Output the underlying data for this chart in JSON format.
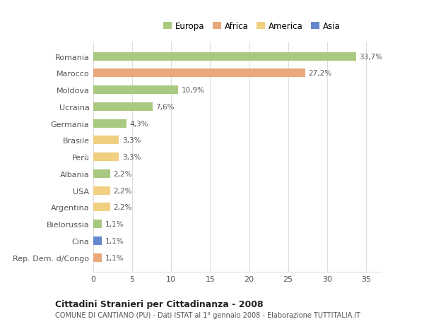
{
  "categories": [
    "Romania",
    "Marocco",
    "Moldova",
    "Ucraina",
    "Germania",
    "Brasile",
    "Perù",
    "Albania",
    "USA",
    "Argentina",
    "Bielorussia",
    "Cina",
    "Rep. Dem. d/Congo"
  ],
  "values": [
    33.7,
    27.2,
    10.9,
    7.6,
    4.3,
    3.3,
    3.3,
    2.2,
    2.2,
    2.2,
    1.1,
    1.1,
    1.1
  ],
  "labels": [
    "33,7%",
    "27,2%",
    "10,9%",
    "7,6%",
    "4,3%",
    "3,3%",
    "3,3%",
    "2,2%",
    "2,2%",
    "2,2%",
    "1,1%",
    "1,1%",
    "1,1%"
  ],
  "colors": [
    "#a8c97f",
    "#e8a87c",
    "#a8c97f",
    "#a8c97f",
    "#a8c97f",
    "#f0d080",
    "#f0d080",
    "#a8c97f",
    "#f0d080",
    "#f0d080",
    "#a8c97f",
    "#6688cc",
    "#e8a87c"
  ],
  "legend_labels": [
    "Europa",
    "Africa",
    "America",
    "Asia"
  ],
  "legend_colors": [
    "#a8c97f",
    "#e8a87c",
    "#f0d080",
    "#6688cc"
  ],
  "title": "Cittadini Stranieri per Cittadinanza - 2008",
  "subtitle": "COMUNE DI CANTIANO (PU) - Dati ISTAT al 1° gennaio 2008 - Elaborazione TUTTITALIA.IT",
  "xlim": [
    0,
    37
  ],
  "xticks": [
    0,
    5,
    10,
    15,
    20,
    25,
    30,
    35
  ],
  "background_color": "#ffffff",
  "grid_color": "#dddddd"
}
